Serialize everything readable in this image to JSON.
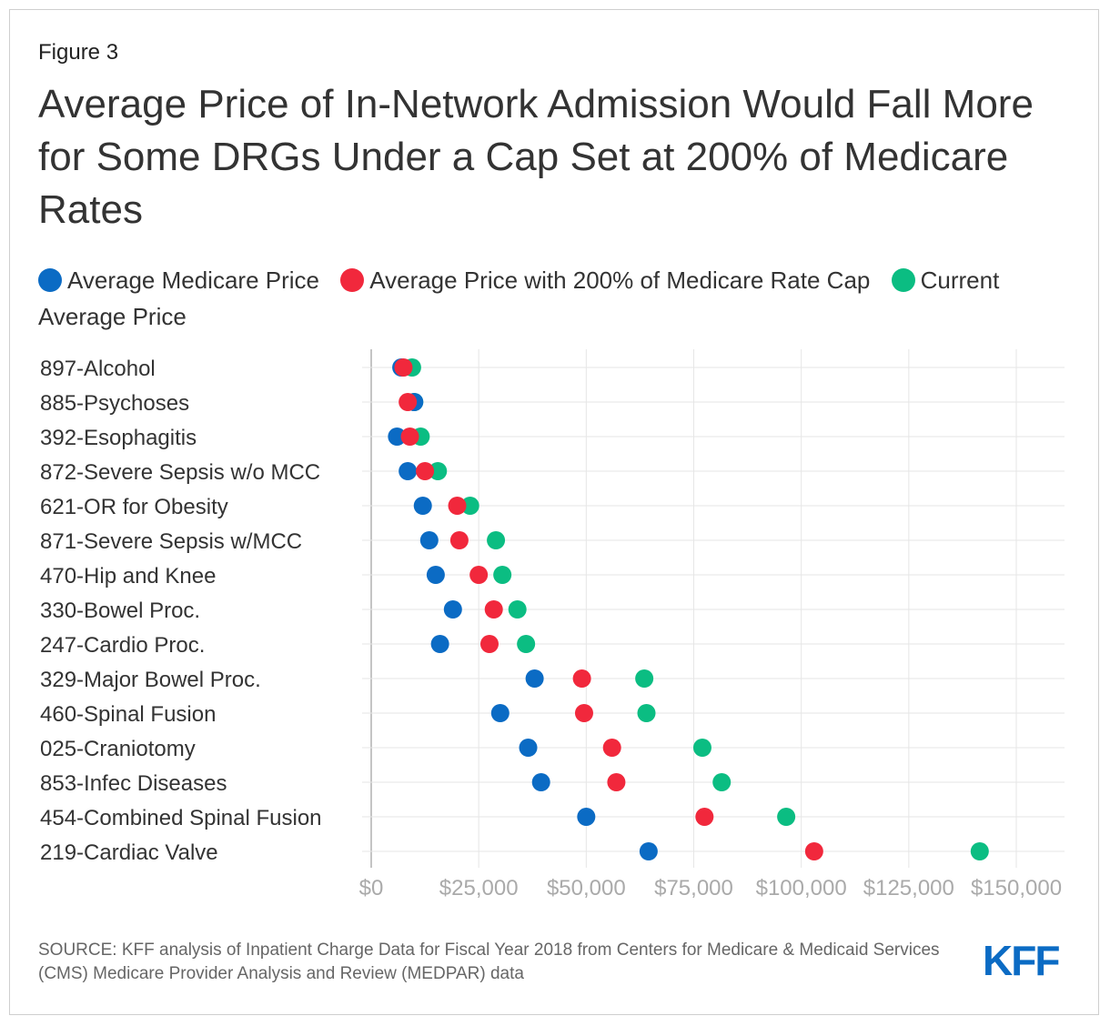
{
  "figure_label": "Figure 3",
  "title": "Average Price of In-Network Admission Would Fall More for Some DRGs Under a Cap Set at 200% of Medicare Rates",
  "source": "SOURCE: KFF analysis of Inpatient Charge Data for Fiscal Year 2018 from Centers for Medicare & Medicaid Services (CMS) Medicare Provider Analysis and Review (MEDPAR) data",
  "logo": "KFF",
  "colors": {
    "medicare": "#0b6bc4",
    "cap": "#f1283c",
    "current": "#0bbd82",
    "grid": "#e6e6e6",
    "axis": "#b0b0b0"
  },
  "chart_data": {
    "type": "scatter",
    "orientation": "horizontal dot plot",
    "categories": [
      "897-Alcohol",
      "885-Psychoses",
      "392-Esophagitis",
      "872-Severe Sepsis w/o MCC",
      "621-OR for Obesity",
      "871-Severe Sepsis w/MCC",
      "470-Hip and Knee",
      "330-Bowel Proc.",
      "247-Cardio Proc.",
      "329-Major Bowel Proc.",
      "460-Spinal Fusion",
      "025-Craniotomy",
      "853-Infec Diseases",
      "454-Combined Spinal Fusion",
      "219-Cardiac Valve"
    ],
    "series": [
      {
        "name": "Average Medicare Price",
        "color": "#0b6bc4",
        "values": [
          7000,
          10000,
          6000,
          8500,
          12000,
          13500,
          15000,
          19000,
          16000,
          38000,
          30000,
          36500,
          39500,
          50000,
          64500
        ]
      },
      {
        "name": "Average Price with 200% of Medicare Rate Cap",
        "color": "#f1283c",
        "values": [
          7500,
          8500,
          9000,
          12500,
          20000,
          20500,
          25000,
          28500,
          27500,
          49000,
          49500,
          56000,
          57000,
          77500,
          103000
        ]
      },
      {
        "name": "Current Average Price",
        "color": "#0bbd82",
        "values": [
          9500,
          10000,
          11500,
          15500,
          23000,
          29000,
          30500,
          34000,
          36000,
          63500,
          64000,
          77000,
          81500,
          96500,
          141500
        ]
      }
    ],
    "xlim": [
      0,
      160000
    ],
    "xticks": [
      0,
      25000,
      50000,
      75000,
      100000,
      125000,
      150000
    ],
    "xtick_labels": [
      "$0",
      "$25,000",
      "$50,000",
      "$75,000",
      "$100,000",
      "$125,000",
      "$150,000"
    ],
    "legend_position": "top",
    "grid": true
  }
}
